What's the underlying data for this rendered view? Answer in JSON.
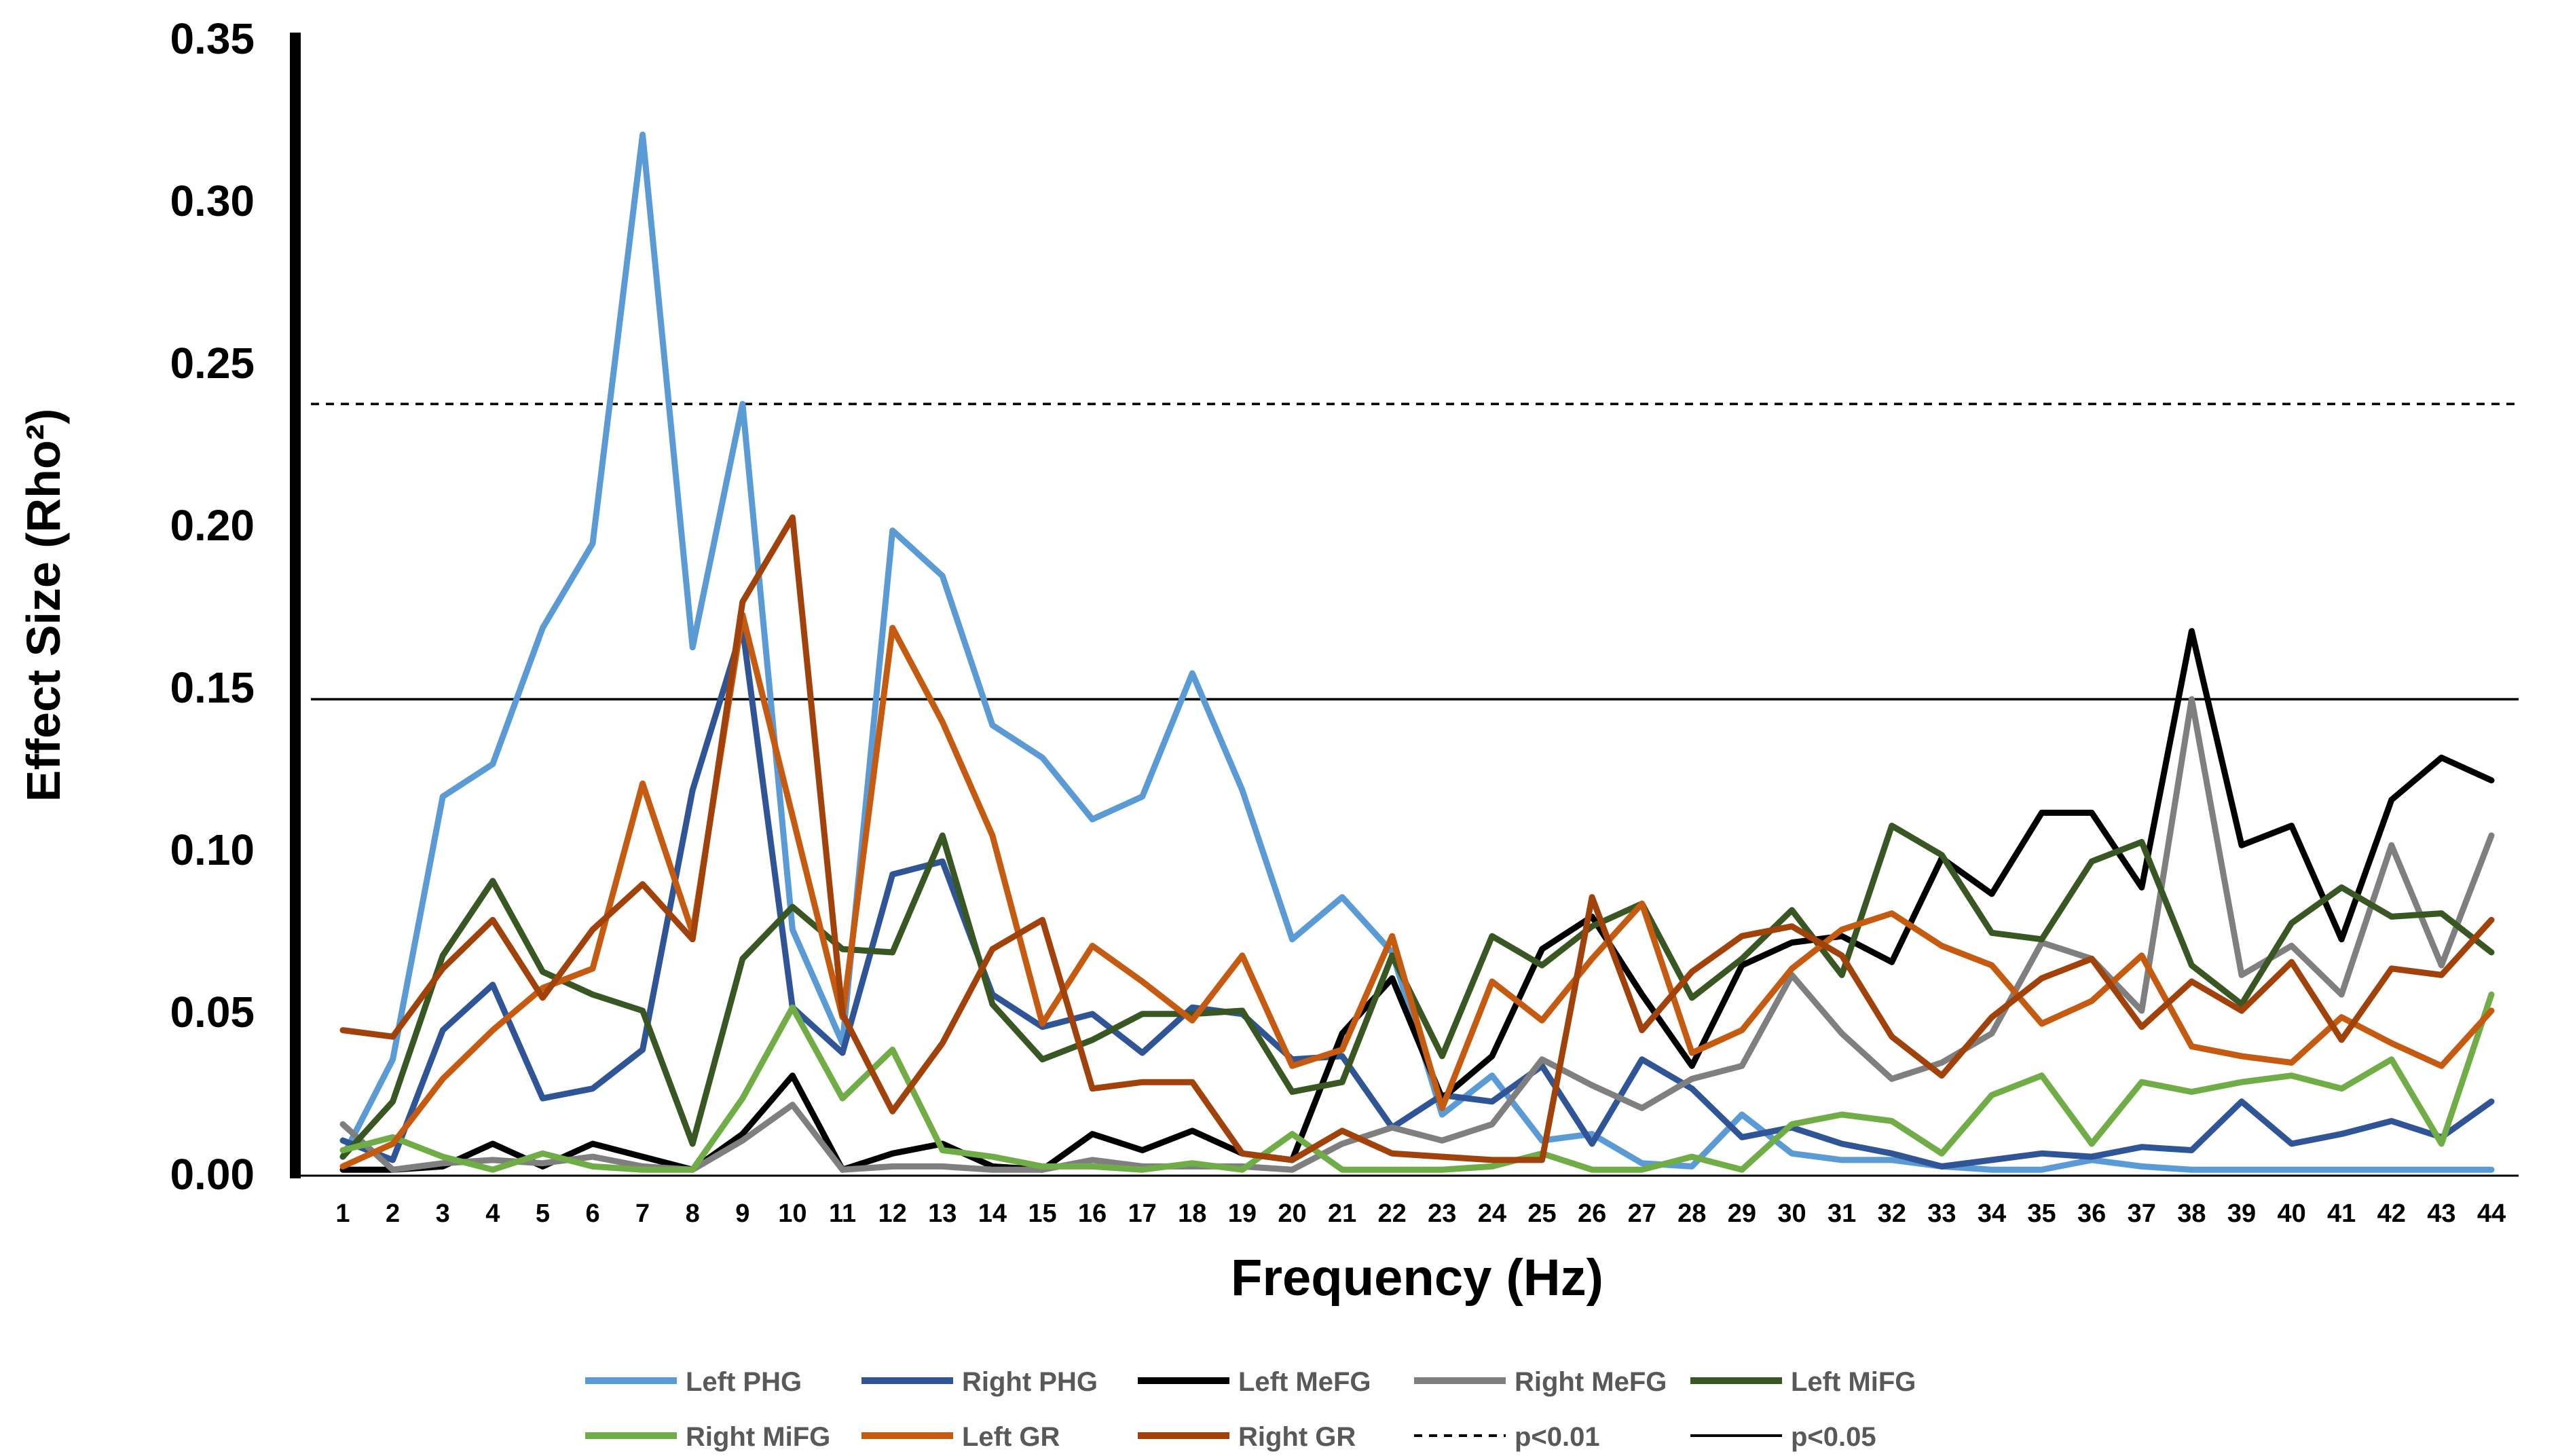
{
  "chart_data": {
    "type": "line",
    "title": "",
    "xlabel": "Frequency (Hz)",
    "ylabel": "Effect Size (Rho²)",
    "ylim": [
      0,
      0.35
    ],
    "yticks": [
      0,
      0.05,
      0.1,
      0.15,
      0.2,
      0.25,
      0.3,
      0.35
    ],
    "ytick_labels": [
      "0.00",
      "0.05",
      "0.10",
      "0.15",
      "0.20",
      "0.25",
      "0.30",
      "0.35"
    ],
    "x": [
      1,
      2,
      3,
      4,
      5,
      6,
      7,
      8,
      9,
      10,
      11,
      12,
      13,
      14,
      15,
      16,
      17,
      18,
      19,
      20,
      21,
      22,
      23,
      24,
      25,
      26,
      27,
      28,
      29,
      30,
      31,
      32,
      33,
      34,
      35,
      36,
      37,
      38,
      39,
      40,
      41,
      42,
      43,
      44
    ],
    "x_labels": [
      "1",
      "2",
      "3",
      "4",
      "5",
      "6",
      "7",
      "8",
      "9",
      "10",
      "11",
      "12",
      "13",
      "14",
      "15",
      "16",
      "17",
      "18",
      "19",
      "20",
      "21",
      "22",
      "23",
      "24",
      "25",
      "26",
      "27",
      "28",
      "29",
      "30",
      "31",
      "32",
      "33",
      "34",
      "35",
      "36",
      "37",
      "38",
      "39",
      "40",
      "41",
      "42",
      "43",
      "44"
    ],
    "legend_position": "bottom",
    "series": [
      {
        "name": "Left PHG",
        "color": "#5b9bd5",
        "values": [
          0.005,
          0.035,
          0.116,
          0.126,
          0.168,
          0.194,
          0.32,
          0.162,
          0.237,
          0.075,
          0.04,
          0.198,
          0.184,
          0.138,
          0.128,
          0.109,
          0.116,
          0.154,
          0.118,
          0.072,
          0.085,
          0.068,
          0.018,
          0.03,
          0.01,
          0.012,
          0.003,
          0.002,
          0.018,
          0.006,
          0.004,
          0.004,
          0.002,
          0.001,
          0.001,
          0.004,
          0.002,
          0.001,
          0.001,
          0.001,
          0.001,
          0.001,
          0.001,
          0.001
        ]
      },
      {
        "name": "Right PHG",
        "color": "#2f5597",
        "values": [
          0.01,
          0.004,
          0.044,
          0.058,
          0.023,
          0.026,
          0.038,
          0.118,
          0.168,
          0.051,
          0.037,
          0.092,
          0.096,
          0.055,
          0.045,
          0.049,
          0.037,
          0.051,
          0.049,
          0.035,
          0.036,
          0.014,
          0.024,
          0.022,
          0.033,
          0.009,
          0.035,
          0.026,
          0.011,
          0.014,
          0.009,
          0.006,
          0.002,
          0.004,
          0.006,
          0.005,
          0.008,
          0.007,
          0.022,
          0.009,
          0.012,
          0.016,
          0.011,
          0.022
        ]
      },
      {
        "name": "Left MeFG",
        "color": "#000000",
        "values": [
          0.001,
          0.001,
          0.002,
          0.009,
          0.002,
          0.009,
          0.005,
          0.001,
          0.012,
          0.03,
          0.001,
          0.006,
          0.009,
          0.002,
          0.001,
          0.012,
          0.007,
          0.013,
          0.006,
          0.004,
          0.043,
          0.06,
          0.023,
          0.036,
          0.069,
          0.079,
          0.055,
          0.033,
          0.064,
          0.071,
          0.073,
          0.065,
          0.097,
          0.086,
          0.111,
          0.111,
          0.088,
          0.167,
          0.101,
          0.107,
          0.072,
          0.115,
          0.128,
          0.121
        ]
      },
      {
        "name": "Right MeFG",
        "color": "#7f7f7f",
        "values": [
          0.015,
          0.001,
          0.003,
          0.004,
          0.003,
          0.005,
          0.002,
          0.001,
          0.01,
          0.021,
          0.001,
          0.002,
          0.002,
          0.001,
          0.001,
          0.004,
          0.002,
          0.002,
          0.002,
          0.001,
          0.009,
          0.014,
          0.01,
          0.015,
          0.035,
          0.027,
          0.02,
          0.029,
          0.033,
          0.061,
          0.043,
          0.029,
          0.034,
          0.043,
          0.071,
          0.066,
          0.05,
          0.146,
          0.061,
          0.07,
          0.055,
          0.101,
          0.064,
          0.104
        ]
      },
      {
        "name": "Left MiFG",
        "color": "#385723",
        "values": [
          0.005,
          0.022,
          0.067,
          0.09,
          0.062,
          0.055,
          0.05,
          0.009,
          0.066,
          0.082,
          0.069,
          0.068,
          0.104,
          0.052,
          0.035,
          0.041,
          0.049,
          0.049,
          0.05,
          0.025,
          0.028,
          0.067,
          0.036,
          0.073,
          0.064,
          0.076,
          0.083,
          0.054,
          0.066,
          0.081,
          0.061,
          0.107,
          0.098,
          0.074,
          0.072,
          0.096,
          0.102,
          0.064,
          0.052,
          0.077,
          0.088,
          0.079,
          0.08,
          0.068
        ]
      },
      {
        "name": "Right MiFG",
        "color": "#70ad47",
        "values": [
          0.007,
          0.011,
          0.005,
          0.001,
          0.006,
          0.002,
          0.001,
          0.001,
          0.023,
          0.051,
          0.023,
          0.038,
          0.007,
          0.005,
          0.002,
          0.002,
          0.001,
          0.003,
          0.001,
          0.012,
          0.001,
          0.001,
          0.001,
          0.002,
          0.006,
          0.001,
          0.001,
          0.005,
          0.001,
          0.015,
          0.018,
          0.016,
          0.006,
          0.024,
          0.03,
          0.009,
          0.028,
          0.025,
          0.028,
          0.03,
          0.026,
          0.035,
          0.009,
          0.055
        ]
      },
      {
        "name": "Left GR",
        "color": "#c55a11",
        "values": [
          0.002,
          0.009,
          0.029,
          0.044,
          0.057,
          0.063,
          0.12,
          0.074,
          0.172,
          0.11,
          0.048,
          0.168,
          0.139,
          0.104,
          0.046,
          0.07,
          0.059,
          0.047,
          0.067,
          0.033,
          0.038,
          0.073,
          0.02,
          0.059,
          0.047,
          0.066,
          0.083,
          0.037,
          0.044,
          0.063,
          0.075,
          0.08,
          0.07,
          0.064,
          0.046,
          0.053,
          0.067,
          0.039,
          0.036,
          0.034,
          0.048,
          0.04,
          0.033,
          0.05
        ]
      },
      {
        "name": "Right GR",
        "color": "#a0420a",
        "values": [
          0.044,
          0.042,
          0.063,
          0.078,
          0.054,
          0.075,
          0.089,
          0.072,
          0.176,
          0.202,
          0.049,
          0.019,
          0.04,
          0.069,
          0.078,
          0.026,
          0.028,
          0.028,
          0.006,
          0.004,
          0.013,
          0.006,
          0.005,
          0.004,
          0.004,
          0.085,
          0.044,
          0.062,
          0.073,
          0.076,
          0.067,
          0.042,
          0.03,
          0.048,
          0.06,
          0.066,
          0.045,
          0.059,
          0.05,
          0.065,
          0.041,
          0.063,
          0.061,
          0.078
        ]
      }
    ],
    "threshold_lines": [
      {
        "name": "p<0.01",
        "value": 0.237,
        "style": "dashed",
        "color": "#000000"
      },
      {
        "name": "p<0.05",
        "value": 0.146,
        "style": "solid",
        "color": "#000000"
      }
    ]
  }
}
